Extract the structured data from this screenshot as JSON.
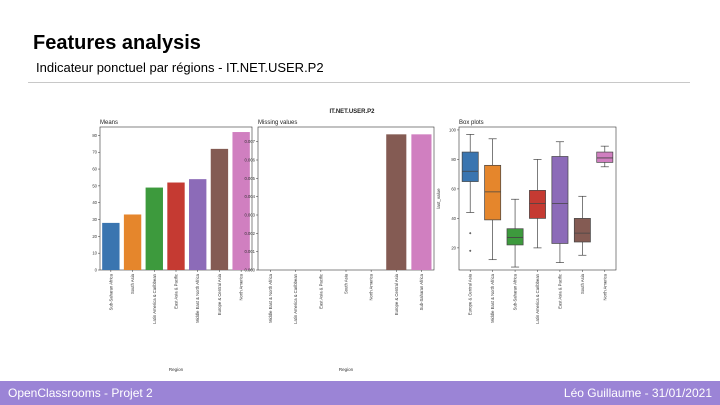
{
  "slide": {
    "title": "Features analysis",
    "subtitle": "Indicateur ponctuel par régions - IT.NET.USER.P2"
  },
  "footer": {
    "left": "OpenClassrooms - Projet 2",
    "right": "Léo Guillaume - 31/01/2021"
  },
  "colors": {
    "footer_bg": "#9b84d6",
    "series": [
      "#3a75b0",
      "#e5862c",
      "#3d9a3d",
      "#c53a32",
      "#8c6bb8",
      "#845b53",
      "#d07fc0"
    ]
  },
  "figure": {
    "suptitle": "IT.NET.USER.P2"
  },
  "chart_data": [
    {
      "type": "bar",
      "title": "Means",
      "xlabel": "Region",
      "ylabel": "",
      "categories": [
        "Sub-Saharan Africa",
        "South Asia",
        "Latin America & Caribbean",
        "East Asia & Pacific",
        "Middle East & North Africa",
        "Europe & Central Asia",
        "North America"
      ],
      "values": [
        28,
        33,
        49,
        52,
        54,
        72,
        82
      ],
      "colors": [
        "#3a75b0",
        "#e5862c",
        "#3d9a3d",
        "#c53a32",
        "#8c6bb8",
        "#845b53",
        "#d07fc0"
      ],
      "ylim": [
        0,
        85
      ],
      "yticks": [
        0,
        10,
        20,
        30,
        40,
        50,
        60,
        70,
        80
      ],
      "ytick_labels": [
        "0",
        "10",
        "20",
        "30",
        "40",
        "50",
        "60",
        "70",
        "80"
      ]
    },
    {
      "type": "bar",
      "title": "Missing values",
      "xlabel": "Region",
      "ylabel": "",
      "categories": [
        "Middle East & North Africa",
        "Latin America & Caribbean",
        "East Asia & Pacific",
        "South Asia",
        "North America",
        "Europe & Central Asia",
        "Sub-Saharan Africa"
      ],
      "values": [
        0,
        0,
        0,
        0,
        0,
        0.0074,
        0.0074
      ],
      "colors": [
        "#3a75b0",
        "#e5862c",
        "#3d9a3d",
        "#c53a32",
        "#8c6bb8",
        "#845b53",
        "#d07fc0"
      ],
      "ylim": [
        0,
        0.0078
      ],
      "yticks": [
        0,
        0.001,
        0.002,
        0.003,
        0.004,
        0.005,
        0.006,
        0.007
      ],
      "ytick_labels": [
        "0.000",
        "0.001",
        "0.002",
        "0.003",
        "0.004",
        "0.005",
        "0.006",
        "0.007"
      ]
    },
    {
      "type": "box",
      "title": "Box plots",
      "xlabel": "",
      "ylabel": "last_value",
      "categories": [
        "Europe & Central Asia",
        "Middle East & North Africa",
        "Sub-Saharan Africa",
        "Latin America & Caribbean",
        "East Asia & Pacific",
        "South Asia",
        "North America"
      ],
      "boxes": [
        {
          "whislo": 44,
          "q1": 65,
          "med": 72,
          "q3": 85,
          "whishi": 97,
          "fliers": [
            30,
            18
          ]
        },
        {
          "whislo": 12,
          "q1": 39,
          "med": 58,
          "q3": 76,
          "whishi": 94,
          "fliers": []
        },
        {
          "whislo": 7,
          "q1": 22,
          "med": 27,
          "q3": 33,
          "whishi": 53,
          "fliers": []
        },
        {
          "whislo": 20,
          "q1": 40,
          "med": 50,
          "q3": 59,
          "whishi": 80,
          "fliers": []
        },
        {
          "whislo": 10,
          "q1": 23,
          "med": 50,
          "q3": 82,
          "whishi": 92,
          "fliers": []
        },
        {
          "whislo": 15,
          "q1": 24,
          "med": 30,
          "q3": 40,
          "whishi": 55,
          "fliers": []
        },
        {
          "whislo": 75,
          "q1": 78,
          "med": 81,
          "q3": 85,
          "whishi": 89,
          "fliers": []
        }
      ],
      "colors": [
        "#3a75b0",
        "#e5862c",
        "#3d9a3d",
        "#c53a32",
        "#8c6bb8",
        "#845b53",
        "#d07fc0"
      ],
      "ylim": [
        5,
        102
      ],
      "yticks": [
        20,
        40,
        60,
        80,
        100
      ],
      "ytick_labels": [
        "20",
        "40",
        "60",
        "80",
        "100"
      ]
    }
  ]
}
